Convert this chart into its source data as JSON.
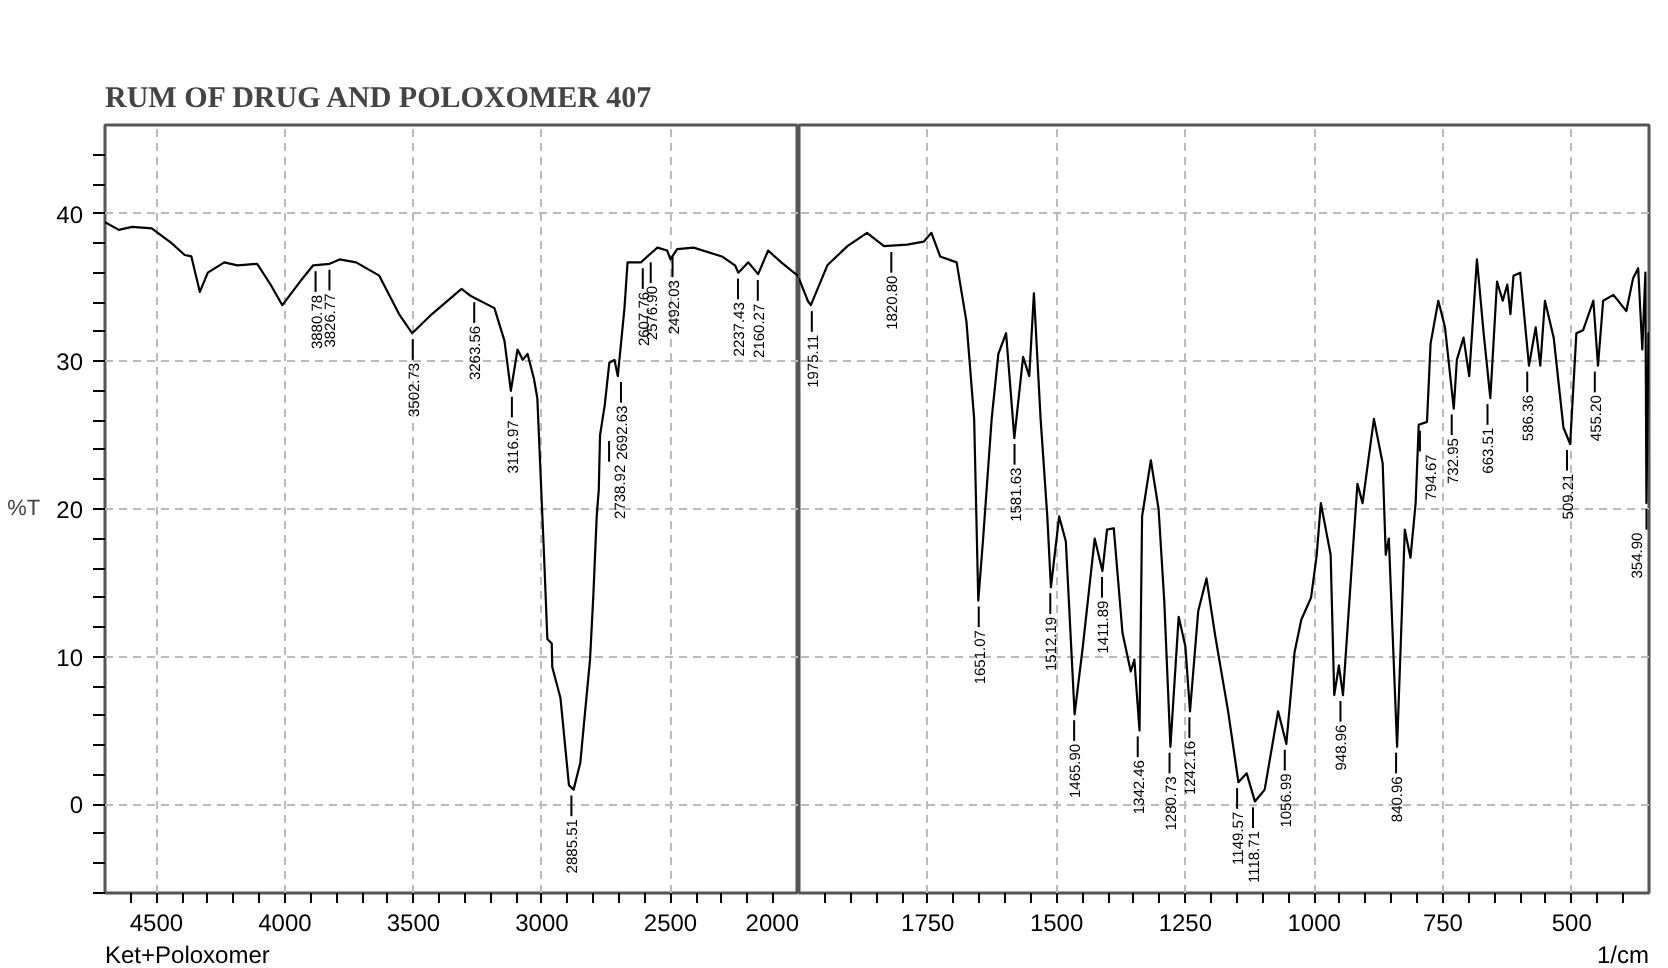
{
  "chart_data": [
    {
      "type": "line",
      "title": "RUM OF DRUG AND POLOXOMER 407",
      "ylabel": "%T",
      "grid": true,
      "line_style": "solid",
      "marker": "none",
      "xlim": [
        4700,
        2000
      ],
      "ylim": [
        -6,
        46
      ],
      "xticks": [
        {
          "value": 4600,
          "label": null
        },
        4500,
        {
          "value": 4400,
          "label": null
        },
        {
          "value": 4300,
          "label": null
        },
        {
          "value": 4200,
          "label": null
        },
        {
          "value": 4100,
          "label": null
        },
        4000,
        {
          "value": 3900,
          "label": null
        },
        {
          "value": 3800,
          "label": null
        },
        {
          "value": 3700,
          "label": null
        },
        {
          "value": 3600,
          "label": null
        },
        3500,
        {
          "value": 3400,
          "label": null
        },
        {
          "value": 3300,
          "label": null
        },
        {
          "value": 3200,
          "label": null
        },
        {
          "value": 3100,
          "label": null
        },
        3000,
        {
          "value": 2900,
          "label": null
        },
        {
          "value": 2800,
          "label": null
        },
        {
          "value": 2700,
          "label": null
        },
        {
          "value": 2600,
          "label": null
        },
        2500,
        {
          "value": 2400,
          "label": null
        },
        {
          "value": 2300,
          "label": null
        },
        {
          "value": 2200,
          "label": null
        },
        {
          "value": 2100,
          "label": null
        },
        2000
      ],
      "yticks": [
        {
          "value": -6,
          "label": null
        },
        {
          "value": -4,
          "label": null
        },
        {
          "value": -2,
          "label": null
        },
        0,
        {
          "value": 2,
          "label": null
        },
        {
          "value": 4,
          "label": null
        },
        {
          "value": 6,
          "label": null
        },
        {
          "value": 8,
          "label": null
        },
        10,
        {
          "value": 12,
          "label": null
        },
        {
          "value": 14,
          "label": null
        },
        {
          "value": 16,
          "label": null
        },
        {
          "value": 18,
          "label": null
        },
        20,
        {
          "value": 22,
          "label": null
        },
        {
          "value": 24,
          "label": null
        },
        {
          "value": 26,
          "label": null
        },
        {
          "value": 28,
          "label": null
        },
        30,
        {
          "value": 32,
          "label": null
        },
        {
          "value": 34,
          "label": null
        },
        {
          "value": 36,
          "label": null
        },
        {
          "value": 38,
          "label": null
        },
        40,
        {
          "value": 42,
          "label": null
        },
        {
          "value": 44,
          "label": null
        }
      ],
      "series": [
        {
          "color": "#000000",
          "x": [
            4698,
            4646,
            4595,
            4518,
            4441,
            4390,
            4364,
            4331,
            4300,
            4236,
            4185,
            4108,
            4056,
            4010,
            3941,
            3890,
            3826,
            3787,
            3723,
            3633,
            3556,
            3505,
            3428,
            3313,
            3275,
            3185,
            3146,
            3121,
            3095,
            3075,
            3056,
            3031,
            3018,
            2992,
            2979,
            2962,
            2960,
            2928,
            2895,
            2877,
            2851,
            2813,
            2800,
            2787,
            2779,
            2774,
            2756,
            2738,
            2718,
            2705,
            2679,
            2667,
            2615,
            2590,
            2551,
            2513,
            2500,
            2474,
            2410,
            2300,
            2249,
            2236,
            2197,
            2159,
            2120,
            2069,
            2005,
            2000
          ],
          "values": [
            39.4,
            38.9,
            39.1,
            39.0,
            38.0,
            37.2,
            37.1,
            34.7,
            36.0,
            36.7,
            36.5,
            36.6,
            35.2,
            33.8,
            35.4,
            36.5,
            36.6,
            36.9,
            36.7,
            35.8,
            33.2,
            31.9,
            33.2,
            34.9,
            34.4,
            33.6,
            31.4,
            28.0,
            30.8,
            30.1,
            30.5,
            28.8,
            27.5,
            16.9,
            11.2,
            10.9,
            9.3,
            7.2,
            1.3,
            1.0,
            2.8,
            9.8,
            14.2,
            19.5,
            21.3,
            25.0,
            27.0,
            29.9,
            30.1,
            29.0,
            33.6,
            36.7,
            36.7,
            37.1,
            37.7,
            37.5,
            36.9,
            37.6,
            37.7,
            37.1,
            36.5,
            36.0,
            36.7,
            35.9,
            37.5,
            36.7,
            35.8,
            35.6
          ]
        }
      ],
      "annotations": [
        {
          "text": "3880.78",
          "x": 3880.78,
          "y": 36.5
        },
        {
          "text": "3826.77",
          "x": 3826.77,
          "y": 36.6
        },
        {
          "text": "3502.73",
          "x": 3502.73,
          "y": 31.9
        },
        {
          "text": "3263.56",
          "x": 3263.56,
          "y": 34.4
        },
        {
          "text": "3116.97",
          "x": 3116.97,
          "y": 28.0
        },
        {
          "text": "2885.51",
          "x": 2885.51,
          "y": 1.0
        },
        {
          "text": "2738.92",
          "x": 2738.92,
          "y": 25.0
        },
        {
          "text": "2692.63",
          "x": 2692.63,
          "y": 29.0
        },
        {
          "text": "2607.76",
          "x": 2607.76,
          "y": 36.7
        },
        {
          "text": "2576.90",
          "x": 2576.9,
          "y": 37.1
        },
        {
          "text": "2492.03",
          "x": 2492.03,
          "y": 37.5
        },
        {
          "text": "2237.43",
          "x": 2237.43,
          "y": 36.0
        },
        {
          "text": "2160.27",
          "x": 2160.27,
          "y": 35.9
        },
        "Ket+Poloxomer"
      ]
    },
    {
      "type": "line",
      "xlabel": "1/cm",
      "grid": true,
      "line_style": "solid",
      "marker": "none",
      "tick_labels": "x",
      "xlim": [
        2000,
        350
      ],
      "ylim": [
        -6,
        46
      ],
      "xticks": [
        {
          "value": 1950,
          "label": null
        },
        {
          "value": 1900,
          "label": null
        },
        {
          "value": 1850,
          "label": null
        },
        {
          "value": 1800,
          "label": null
        },
        1750,
        {
          "value": 1700,
          "label": null
        },
        {
          "value": 1650,
          "label": null
        },
        {
          "value": 1600,
          "label": null
        },
        {
          "value": 1550,
          "label": null
        },
        1500,
        {
          "value": 1450,
          "label": null
        },
        {
          "value": 1400,
          "label": null
        },
        {
          "value": 1350,
          "label": null
        },
        {
          "value": 1300,
          "label": null
        },
        1250,
        {
          "value": 1200,
          "label": null
        },
        {
          "value": 1150,
          "label": null
        },
        {
          "value": 1100,
          "label": null
        },
        {
          "value": 1050,
          "label": null
        },
        1000,
        {
          "value": 950,
          "label": null
        },
        {
          "value": 900,
          "label": null
        },
        {
          "value": 850,
          "label": null
        },
        {
          "value": 800,
          "label": null
        },
        750,
        {
          "value": 700,
          "label": null
        },
        {
          "value": 650,
          "label": null
        },
        {
          "value": 600,
          "label": null
        },
        {
          "value": 550,
          "label": null
        },
        500,
        {
          "value": 450,
          "label": null
        },
        {
          "value": 400,
          "label": null
        }
      ],
      "yticks": [
        0,
        10,
        20,
        30,
        40
      ],
      "series": [
        {
          "color": "#000000",
          "x": [
            2000,
            1983,
            1977,
            1945,
            1906,
            1868,
            1835,
            1790,
            1758,
            1743,
            1726,
            1694,
            1675,
            1660,
            1652,
            1643,
            1626,
            1613,
            1598,
            1582,
            1565,
            1553,
            1544,
            1531,
            1518,
            1511,
            1495,
            1482,
            1465,
            1449,
            1426,
            1411,
            1402,
            1389,
            1372,
            1356,
            1349,
            1339,
            1334,
            1317,
            1302,
            1291,
            1279,
            1263,
            1250,
            1241,
            1225,
            1209,
            1192,
            1167,
            1147,
            1131,
            1115,
            1096,
            1070,
            1054,
            1038,
            1025,
            1006,
            995,
            987,
            968,
            961,
            952,
            944,
            929,
            916,
            906,
            884,
            867,
            861,
            855,
            839,
            824,
            813,
            803,
            797,
            781,
            774,
            759,
            746,
            729,
            723,
            710,
            699,
            684,
            671,
            658,
            645,
            634,
            625,
            619,
            613,
            600,
            583,
            570,
            561,
            552,
            535,
            516,
            503,
            491,
            478,
            458,
            449,
            439,
            419,
            394,
            381,
            371,
            363,
            357,
            355,
            351
          ],
          "values": [
            35.6,
            34.1,
            33.8,
            36.5,
            37.8,
            38.7,
            37.8,
            37.9,
            38.1,
            38.7,
            37.1,
            36.7,
            32.7,
            26.1,
            13.8,
            17.8,
            26.1,
            30.5,
            31.9,
            24.8,
            30.3,
            29.0,
            34.6,
            26.1,
            19.5,
            14.7,
            19.5,
            17.8,
            6.1,
            10.7,
            18.0,
            15.8,
            18.6,
            18.7,
            11.6,
            9.0,
            9.8,
            5.0,
            19.5,
            23.3,
            20.0,
            13.8,
            3.9,
            12.7,
            10.7,
            6.3,
            13.1,
            15.3,
            11.4,
            6.3,
            1.5,
            2.1,
            0.2,
            1.0,
            6.3,
            4.1,
            10.3,
            12.5,
            14.0,
            16.9,
            20.4,
            16.9,
            7.4,
            9.4,
            7.4,
            15.1,
            21.7,
            20.4,
            26.1,
            23.1,
            16.9,
            18.0,
            3.9,
            18.6,
            16.7,
            20.4,
            25.7,
            25.9,
            31.2,
            34.1,
            32.3,
            26.8,
            30.1,
            31.6,
            29.0,
            36.9,
            31.9,
            27.5,
            35.4,
            34.1,
            35.2,
            33.2,
            35.8,
            36.0,
            29.7,
            32.3,
            29.7,
            34.1,
            31.6,
            25.5,
            24.4,
            31.9,
            32.1,
            34.1,
            29.7,
            34.1,
            34.5,
            33.4,
            35.6,
            36.3,
            30.8,
            36.0,
            20.4,
            31.9
          ]
        }
      ],
      "annotations": [
        {
          "text": "1975.11",
          "x": 1975.11,
          "y": 33.8
        },
        {
          "text": "1820.80",
          "x": 1820.8,
          "y": 37.8
        },
        {
          "text": "1651.07",
          "x": 1651.07,
          "y": 13.8
        },
        {
          "text": "1581.63",
          "x": 1581.63,
          "y": 24.8
        },
        {
          "text": "1512.19",
          "x": 1512.19,
          "y": 14.7
        },
        {
          "text": "1465.90",
          "x": 1465.9,
          "y": 6.1
        },
        {
          "text": "1411.89",
          "x": 1411.89,
          "y": 15.8
        },
        {
          "text": "1342.46",
          "x": 1342.46,
          "y": 5.0
        },
        {
          "text": "1280.73",
          "x": 1280.73,
          "y": 3.9
        },
        {
          "text": "1242.16",
          "x": 1242.16,
          "y": 6.3
        },
        {
          "text": "1149.57",
          "x": 1149.57,
          "y": 1.5
        },
        {
          "text": "1118.71",
          "x": 1118.71,
          "y": 0.2
        },
        {
          "text": "1056.99",
          "x": 1056.99,
          "y": 4.1
        },
        {
          "text": "948.96",
          "x": 948.96,
          "y": 7.4
        },
        {
          "text": "840.96",
          "x": 840.96,
          "y": 3.9
        },
        {
          "text": "794.67",
          "x": 794.67,
          "y": 25.7
        },
        {
          "text": "732.95",
          "x": 732.95,
          "y": 26.8
        },
        {
          "text": "663.51",
          "x": 663.51,
          "y": 27.5
        },
        {
          "text": "586.36",
          "x": 586.36,
          "y": 29.7
        },
        {
          "text": "509.21",
          "x": 509.21,
          "y": 24.4
        },
        {
          "text": "455.20",
          "x": 455.2,
          "y": 29.7
        },
        {
          "text": "354.90",
          "x": 354.9,
          "y": 20.4
        }
      ]
    }
  ]
}
